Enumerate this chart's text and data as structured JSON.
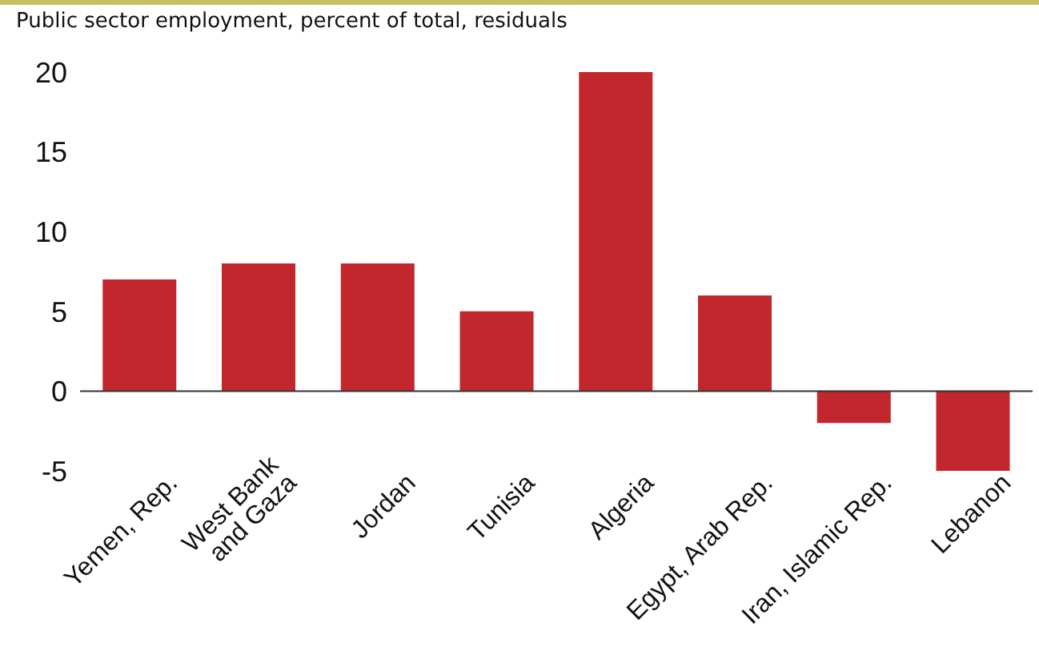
{
  "chart_data": {
    "type": "bar",
    "title": "Public sector employment, percent of total, residuals",
    "categories": [
      "Yemen, Rep.",
      "West Bank\nand Gaza",
      "Jordan",
      "Tunisia",
      "Algeria",
      "Egypt, Arab Rep.",
      "Iran, Islamic Rep.",
      "Lebanon"
    ],
    "values": [
      7,
      8,
      8,
      5,
      20,
      6,
      -2,
      -5
    ],
    "color": "#c1272d",
    "ylim": [
      -5,
      20
    ],
    "yticks": [
      -5,
      0,
      5,
      10,
      15,
      20
    ],
    "ref_lines": [
      {
        "axis": "y",
        "value": 0,
        "color": "#333333"
      }
    ]
  }
}
